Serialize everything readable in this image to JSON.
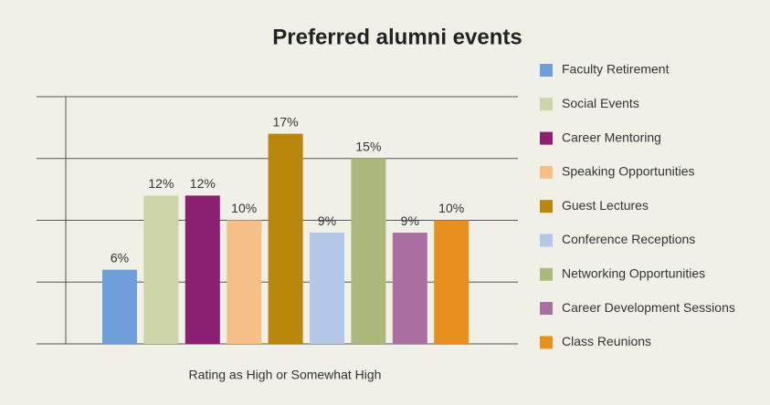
{
  "chart_data": {
    "type": "bar",
    "title": "Preferred alumni events",
    "x_label": "Rating as High or Somewhat High",
    "ylim": [
      0,
      20
    ],
    "yticks": [
      0,
      5,
      10,
      15,
      20
    ],
    "grid": true,
    "legend": "right",
    "series": [
      {
        "name": "Faculty Retirement",
        "color": "#6f9fd8",
        "values": [
          6
        ],
        "value_labels": [
          "6%"
        ]
      },
      {
        "name": "Social Events",
        "color": "#cdd5a8",
        "values": [
          12
        ],
        "value_labels": [
          "12%"
        ]
      },
      {
        "name": "Career Mentoring",
        "color": "#8b1f72",
        "values": [
          12
        ],
        "value_labels": [
          "12%"
        ]
      },
      {
        "name": "Speaking Opportunities",
        "color": "#f5bf88",
        "values": [
          10
        ],
        "value_labels": [
          "10%"
        ]
      },
      {
        "name": "Guest Lectures",
        "color": "#b8860b",
        "values": [
          17
        ],
        "value_labels": [
          "17%"
        ]
      },
      {
        "name": "Conference Receptions",
        "color": "#b3c7e6",
        "values": [
          9
        ],
        "value_labels": [
          "9%"
        ]
      },
      {
        "name": "Networking Opportunities",
        "color": "#adb97a",
        "values": [
          15
        ],
        "value_labels": [
          "15%"
        ]
      },
      {
        "name": "Career Development Sessions",
        "color": "#a86fa0",
        "values": [
          9
        ],
        "value_labels": [
          "9%"
        ]
      },
      {
        "name": "Class Reunions",
        "color": "#e8901e",
        "values": [
          10
        ],
        "value_labels": [
          "10%"
        ]
      }
    ]
  }
}
